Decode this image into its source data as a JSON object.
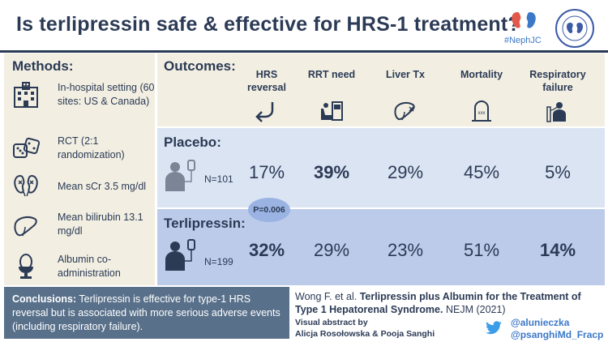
{
  "header": {
    "title": "Is terlipressin safe & effective for HRS-1 treatment?",
    "brand_tag": "#NephJC"
  },
  "methods": {
    "heading": "Methods:",
    "items": [
      {
        "icon": "hospital-icon",
        "text": "In-hospital setting (60 sites: US & Canada)"
      },
      {
        "icon": "dice-icon",
        "text": "RCT (2:1 randomization)"
      },
      {
        "icon": "kidneys-icon",
        "text": "Mean sCr 3.5 mg/dl"
      },
      {
        "icon": "liver-icon",
        "text": "Mean bilirubin 13.1 mg/dl"
      },
      {
        "icon": "egg-cup-icon",
        "text": "Albumin co-administration"
      }
    ]
  },
  "outcomes": {
    "heading": "Outcomes:",
    "columns": [
      {
        "label": "HRS reversal",
        "icon": "return-arrow-icon"
      },
      {
        "label": "RRT need",
        "icon": "dialysis-icon"
      },
      {
        "label": "Liver Tx",
        "icon": "liver-transplant-icon"
      },
      {
        "label": "Mortality",
        "icon": "tombstone-icon"
      },
      {
        "label": "Respiratory failure",
        "icon": "ventilator-icon"
      }
    ]
  },
  "groups": {
    "placebo": {
      "label": "Placebo:",
      "n": "N=101",
      "values": [
        "17%",
        "39%",
        "29%",
        "45%",
        "5%"
      ]
    },
    "terlipressin": {
      "label": "Terlipressin:",
      "n": "N=199",
      "values": [
        "32%",
        "29%",
        "23%",
        "51%",
        "14%"
      ]
    }
  },
  "p_value": "P=0.006",
  "conclusions": {
    "label": "Conclusions:",
    "text": "Terlipressin is effective for type-1 HRS reversal but is associated with more serious adverse events (including respiratory failure)."
  },
  "citation": {
    "authors": "Wong F. et al.",
    "title": "Terlipressin plus Albumin for the Treatment of Type 1 Hepatorenal Syndrome.",
    "journal": "NEJM (2021)"
  },
  "visual_abstract": {
    "line1": "Visual abstract by",
    "line2": "Alicja Rosołowska & Pooja Sanghi"
  },
  "twitter": {
    "handle1": "@alunieczka",
    "handle2": "@psanghiMd_Fracp"
  },
  "colors": {
    "navy": "#2b3a55",
    "beige": "#f2efe2",
    "light_blue": "#dbe4f3",
    "mid_blue": "#bccbea",
    "slate": "#58708a",
    "accent_blue": "#3c78c8"
  }
}
